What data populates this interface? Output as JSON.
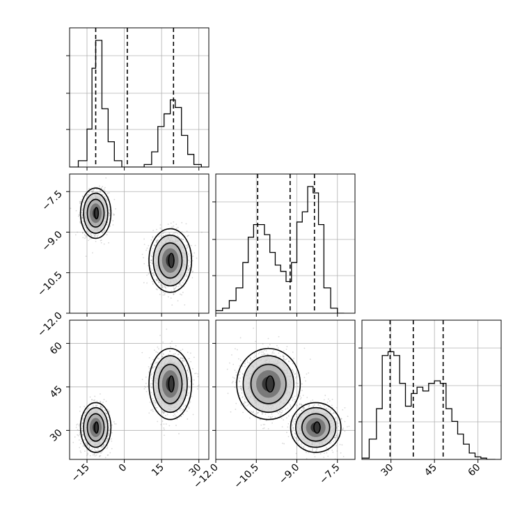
{
  "chart_data": {
    "type": "corner",
    "colors": {
      "line": "#000000",
      "grid": "#b0b0b0",
      "scatter": "#8c8c8c"
    },
    "grid": true,
    "parameters": [
      {
        "range": [
          -22,
          34
        ],
        "ticks": [
          -15,
          0,
          15,
          30
        ],
        "tick_labels": [
          "−15",
          "0",
          "15",
          "30"
        ]
      },
      {
        "range": [
          -12.0,
          -6.85
        ],
        "ticks": [
          -12.0,
          -10.5,
          -9.0,
          -7.5
        ],
        "tick_labels": [
          "−12.0",
          "−10.5",
          "−9.0",
          "−7.5"
        ]
      },
      {
        "range": [
          20,
          68
        ],
        "ticks": [
          30,
          45,
          60
        ],
        "tick_labels": [
          "30",
          "45",
          "60"
        ]
      }
    ],
    "histograms": [
      {
        "parameter": 0,
        "bin_edges": [
          -22,
          -18.5,
          -15,
          -13,
          -11.5,
          -9,
          -6.5,
          -4,
          -1,
          2,
          5,
          8,
          11,
          13.5,
          16,
          18.5,
          20.5,
          23,
          25.5,
          28,
          31,
          34
        ],
        "counts": [
          0,
          0.05,
          0.3,
          0.78,
          1.0,
          0.46,
          0.2,
          0.05,
          0,
          0,
          0,
          0.02,
          0.12,
          0.32,
          0.42,
          0.53,
          0.47,
          0.25,
          0.1,
          0.02,
          0
        ],
        "quantiles": [
          -11.5,
          1.2,
          19.8
        ]
      },
      {
        "parameter": 1,
        "bin_edges": [
          -12.0,
          -11.75,
          -11.5,
          -11.25,
          -11.0,
          -10.8,
          -10.6,
          -10.4,
          -10.2,
          -10.0,
          -9.8,
          -9.6,
          -9.4,
          -9.2,
          -9.0,
          -8.8,
          -8.6,
          -8.4,
          -8.2,
          -8.0,
          -7.75,
          -7.5,
          -7.25
        ],
        "counts": [
          0.02,
          0.04,
          0.1,
          0.2,
          0.4,
          0.6,
          0.7,
          0.7,
          0.62,
          0.48,
          0.38,
          0.33,
          0.25,
          0.4,
          0.72,
          0.8,
          1.0,
          0.95,
          0.7,
          0.2,
          0.04,
          0.0
        ],
        "quantiles": [
          -10.45,
          -9.25,
          -8.35
        ]
      },
      {
        "parameter": 2,
        "bin_edges": [
          20,
          22.5,
          25,
          27,
          29,
          31,
          33,
          35,
          37,
          39,
          41,
          43,
          45,
          47,
          49,
          51,
          53,
          55,
          57,
          59,
          61,
          63,
          66
        ],
        "counts": [
          0.01,
          0.16,
          0.4,
          0.82,
          0.85,
          0.82,
          0.6,
          0.42,
          0.52,
          0.57,
          0.54,
          0.6,
          0.62,
          0.6,
          0.4,
          0.3,
          0.2,
          0.12,
          0.05,
          0.02,
          0.01,
          0.0
        ],
        "quantiles": [
          29.7,
          37.7,
          48.0
        ]
      }
    ],
    "pairs": [
      {
        "x_param": 0,
        "y_param": 1,
        "clusters": [
          {
            "mean": [
              -11.5,
              -8.3
            ],
            "sd": [
              2.5,
              0.38
            ],
            "n": 1600
          },
          {
            "mean": [
              18.5,
              -10.05
            ],
            "sd": [
              3.5,
              0.48
            ],
            "n": 1600
          }
        ]
      },
      {
        "x_param": 0,
        "y_param": 2,
        "clusters": [
          {
            "mean": [
              -11.5,
              31.0
            ],
            "sd": [
              2.5,
              3.5
            ],
            "n": 1600
          },
          {
            "mean": [
              18.5,
              46.0
            ],
            "sd": [
              3.5,
              5.0
            ],
            "n": 1600
          }
        ]
      },
      {
        "x_param": 1,
        "y_param": 2,
        "clusters": [
          {
            "mean": [
              -8.3,
              31.0
            ],
            "sd": [
              0.38,
              3.5
            ],
            "n": 1600
          },
          {
            "mean": [
              -10.05,
              46.0
            ],
            "sd": [
              0.48,
              5.0
            ],
            "n": 1600
          }
        ]
      }
    ]
  }
}
